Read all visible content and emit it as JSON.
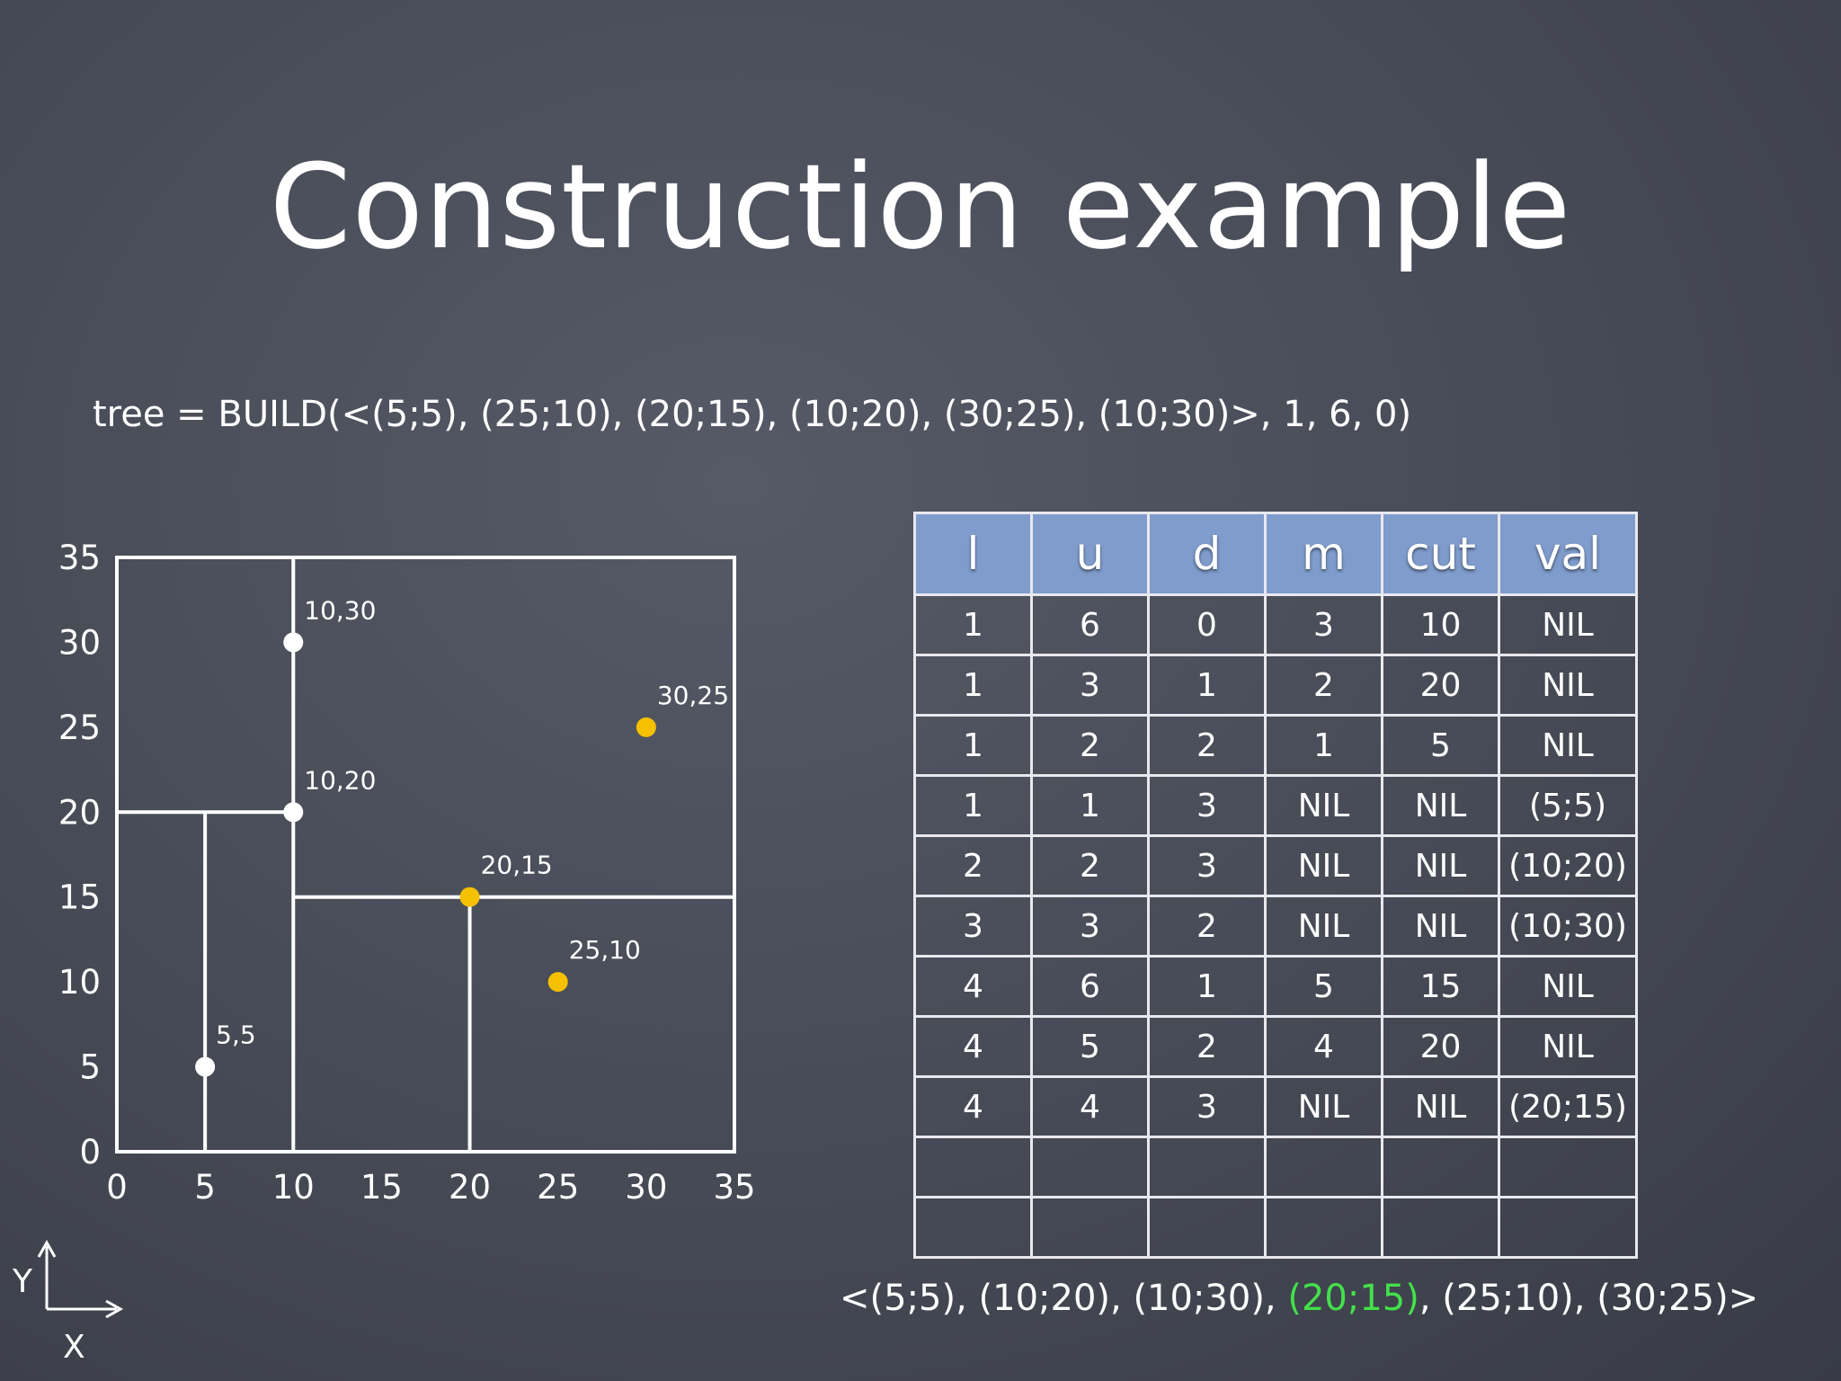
{
  "slide": {
    "title": "Construction example",
    "formula": "tree = BUILD(<(5;5), (25;10), (20;15), (10;20), (30;25), (10;30)>, 1, 6, 0)"
  },
  "plot": {
    "x_ticks": [
      "0",
      "5",
      "10",
      "15",
      "20",
      "25",
      "30",
      "35"
    ],
    "y_ticks": [
      "0",
      "5",
      "10",
      "15",
      "20",
      "25",
      "30",
      "35"
    ],
    "range": [
      0,
      35
    ],
    "axis_labels": {
      "x": "X",
      "y": "Y"
    },
    "colors": {
      "white_point": "#ffffff",
      "yellow_point": "#f5c000",
      "lines": "#ffffff"
    },
    "points": [
      {
        "x": 5,
        "y": 5,
        "label": "5,5",
        "color": "white"
      },
      {
        "x": 10,
        "y": 20,
        "label": "10,20",
        "color": "white"
      },
      {
        "x": 10,
        "y": 30,
        "label": "10,30",
        "color": "white"
      },
      {
        "x": 20,
        "y": 15,
        "label": "20,15",
        "color": "yellow"
      },
      {
        "x": 25,
        "y": 10,
        "label": "25,10",
        "color": "yellow"
      },
      {
        "x": 30,
        "y": 25,
        "label": "30,25",
        "color": "yellow"
      }
    ],
    "splits": [
      {
        "axis": "x",
        "value": 10,
        "from": 0,
        "to": 35
      },
      {
        "axis": "y",
        "value": 20,
        "from": 0,
        "to": 10
      },
      {
        "axis": "x",
        "value": 5,
        "from": 0,
        "to": 20
      },
      {
        "axis": "y",
        "value": 15,
        "from": 10,
        "to": 35
      },
      {
        "axis": "x",
        "value": 20,
        "from": 0,
        "to": 15
      }
    ]
  },
  "table": {
    "headers": [
      "l",
      "u",
      "d",
      "m",
      "cut",
      "val"
    ],
    "header_color": "#7f9ccc",
    "rows": [
      [
        "1",
        "6",
        "0",
        "3",
        "10",
        "NIL"
      ],
      [
        "1",
        "3",
        "1",
        "2",
        "20",
        "NIL"
      ],
      [
        "1",
        "2",
        "2",
        "1",
        "5",
        "NIL"
      ],
      [
        "1",
        "1",
        "3",
        "NIL",
        "NIL",
        "(5;5)"
      ],
      [
        "2",
        "2",
        "3",
        "NIL",
        "NIL",
        "(10;20)"
      ],
      [
        "3",
        "3",
        "2",
        "NIL",
        "NIL",
        "(10;30)"
      ],
      [
        "4",
        "6",
        "1",
        "5",
        "15",
        "NIL"
      ],
      [
        "4",
        "5",
        "2",
        "4",
        "20",
        "NIL"
      ],
      [
        "4",
        "4",
        "3",
        "NIL",
        "NIL",
        "(20;15)"
      ],
      [
        "",
        "",
        "",
        "",
        "",
        ""
      ],
      [
        "",
        "",
        "",
        "",
        "",
        ""
      ]
    ]
  },
  "sorted_list": {
    "prefix": "<(5;5), (10;20), (10;30), ",
    "highlight": "(20;15)",
    "suffix": ", (25;10), (30;25)>",
    "highlight_color": "#44e04a"
  }
}
